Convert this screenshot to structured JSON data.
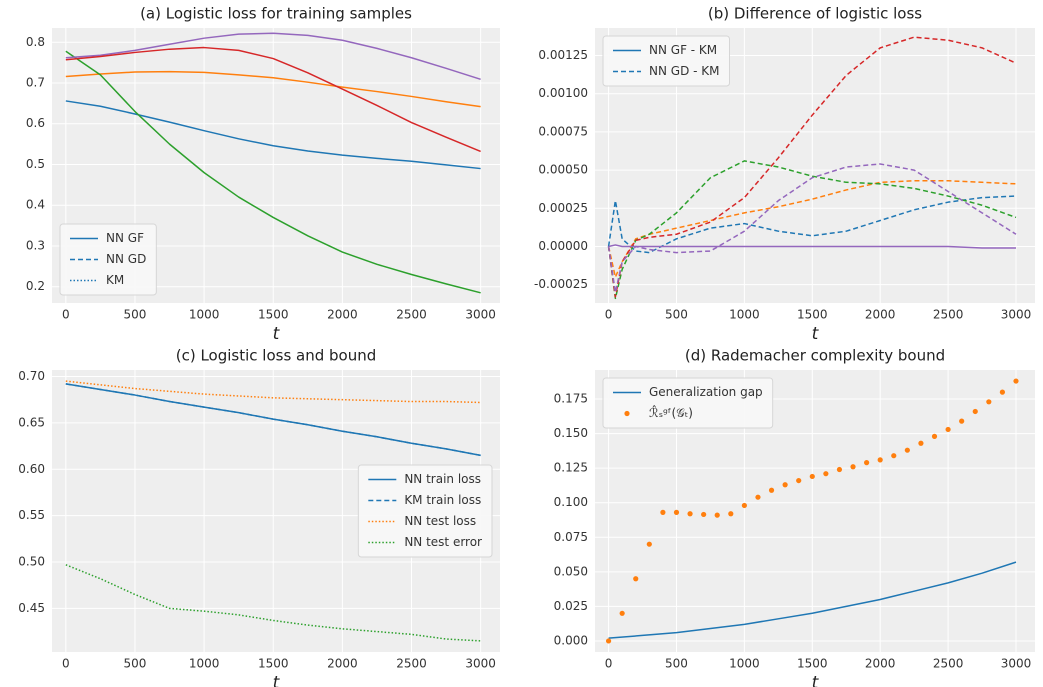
{
  "chart_data": [
    {
      "type": "line",
      "title": "(a) Logistic loss for training samples",
      "xlabel": "t",
      "x": [
        0,
        250,
        500,
        750,
        1000,
        1250,
        1500,
        1750,
        2000,
        2250,
        2500,
        2750,
        3000
      ],
      "xlim": [
        -100,
        3140
      ],
      "xticks": [
        0,
        500,
        1000,
        1500,
        2000,
        2500,
        3000
      ],
      "ylim": [
        0.16,
        0.835
      ],
      "yticks": [
        {
          "value": 0.2,
          "label": "0.2"
        },
        {
          "value": 0.3,
          "label": "0.3"
        },
        {
          "value": 0.4,
          "label": "0.4"
        },
        {
          "value": 0.5,
          "label": "0.5"
        },
        {
          "value": 0.6,
          "label": "0.6"
        },
        {
          "value": 0.7,
          "label": "0.7"
        },
        {
          "value": 0.8,
          "label": "0.8"
        }
      ],
      "grid": true,
      "series": [
        {
          "color": "#1f77b4",
          "style": "solid",
          "values": [
            0.656,
            0.643,
            0.624,
            0.604,
            0.583,
            0.563,
            0.546,
            0.533,
            0.523,
            0.515,
            0.508,
            0.499,
            0.49
          ]
        },
        {
          "color": "#ff7f0e",
          "style": "solid",
          "values": [
            0.716,
            0.722,
            0.727,
            0.728,
            0.726,
            0.72,
            0.713,
            0.702,
            0.69,
            0.679,
            0.667,
            0.654,
            0.642
          ]
        },
        {
          "color": "#2ca02c",
          "style": "solid",
          "values": [
            0.778,
            0.72,
            0.63,
            0.55,
            0.48,
            0.42,
            0.37,
            0.325,
            0.285,
            0.255,
            0.23,
            0.207,
            0.185
          ]
        },
        {
          "color": "#9467bd",
          "style": "solid",
          "values": [
            0.762,
            0.768,
            0.78,
            0.795,
            0.81,
            0.82,
            0.822,
            0.817,
            0.805,
            0.785,
            0.762,
            0.736,
            0.709
          ]
        },
        {
          "color": "#d62728",
          "style": "solid",
          "values": [
            0.757,
            0.765,
            0.775,
            0.783,
            0.787,
            0.78,
            0.76,
            0.725,
            0.685,
            0.645,
            0.603,
            0.567,
            0.532
          ]
        }
      ],
      "legend": {
        "loc": "lower left",
        "entries": [
          {
            "name": "NN GF",
            "color": "#1f77b4",
            "style": "solid"
          },
          {
            "name": "NN GD",
            "color": "#1f77b4",
            "style": "dashed"
          },
          {
            "name": "KM",
            "color": "#1f77b4",
            "style": "dotted"
          }
        ]
      }
    },
    {
      "type": "line",
      "title": "(b) Difference of logistic loss",
      "xlabel": "t",
      "x": [
        0,
        50,
        100,
        200,
        300,
        500,
        750,
        1000,
        1250,
        1500,
        1750,
        2000,
        2250,
        2500,
        2750,
        3000
      ],
      "xlim": [
        -100,
        3140
      ],
      "xticks": [
        0,
        500,
        1000,
        1500,
        2000,
        2500,
        3000
      ],
      "ylim": [
        -0.00037,
        0.00143
      ],
      "yticks": [
        {
          "value": -0.00025,
          "label": "-0.00025"
        },
        {
          "value": 0,
          "label": "0.00000"
        },
        {
          "value": 0.00025,
          "label": "0.00025"
        },
        {
          "value": 0.0005,
          "label": "0.00050"
        },
        {
          "value": 0.00075,
          "label": "0.00075"
        },
        {
          "value": 0.001,
          "label": "0.00100"
        },
        {
          "value": 0.00125,
          "label": "0.00125"
        }
      ],
      "grid": true,
      "series": [
        {
          "color": "#1f77b4",
          "style": "dashed",
          "values": [
            0,
            0.0003,
            5e-05,
            -3e-05,
            -4e-05,
            5e-05,
            0.00012,
            0.00015,
            0.0001,
            7e-05,
            0.0001,
            0.00017,
            0.00024,
            0.00029,
            0.00032,
            0.00033
          ]
        },
        {
          "color": "#ff7f0e",
          "style": "dashed",
          "values": [
            0,
            -0.0002,
            -0.0001,
            5e-05,
            8e-05,
            0.00012,
            0.00017,
            0.00022,
            0.00026,
            0.00031,
            0.00037,
            0.00042,
            0.00043,
            0.00043,
            0.00042,
            0.00041
          ]
        },
        {
          "color": "#2ca02c",
          "style": "dashed",
          "values": [
            0,
            -0.00034,
            -0.00015,
            4e-05,
            8e-05,
            0.00022,
            0.00045,
            0.00056,
            0.00052,
            0.00046,
            0.00042,
            0.00041,
            0.00038,
            0.00033,
            0.00027,
            0.00019
          ]
        },
        {
          "color": "#d62728",
          "style": "dashed",
          "values": [
            0,
            -0.00033,
            -0.0001,
            4e-05,
            6e-05,
            8e-05,
            0.00016,
            0.00032,
            0.00058,
            0.00086,
            0.00112,
            0.0013,
            0.00137,
            0.00135,
            0.0013,
            0.0012
          ]
        },
        {
          "color": "#9467bd",
          "style": "dashed",
          "values": [
            0,
            -0.0003,
            -0.0001,
            0,
            -2e-05,
            -4e-05,
            -3e-05,
            0.0001,
            0.0003,
            0.00045,
            0.00052,
            0.00054,
            0.0005,
            0.00036,
            0.00022,
            8e-05
          ]
        },
        {
          "color": "#9467bd",
          "style": "solid",
          "values": [
            0,
            1e-05,
            0,
            0,
            0,
            0,
            0,
            0,
            0,
            0,
            0,
            0,
            0,
            0,
            -1e-05,
            -1e-05
          ]
        }
      ],
      "legend": {
        "loc": "upper left",
        "entries": [
          {
            "name": "NN GF - KM",
            "color": "#1f77b4",
            "style": "solid"
          },
          {
            "name": "NN GD - KM",
            "color": "#1f77b4",
            "style": "dashed"
          }
        ]
      }
    },
    {
      "type": "line",
      "title": "(c) Logistic loss and bound",
      "xlabel": "t",
      "x": [
        0,
        250,
        500,
        750,
        1000,
        1250,
        1500,
        1750,
        2000,
        2250,
        2500,
        2750,
        3000
      ],
      "xlim": [
        -100,
        3140
      ],
      "xticks": [
        0,
        500,
        1000,
        1500,
        2000,
        2500,
        3000
      ],
      "ylim": [
        0.403,
        0.707
      ],
      "yticks": [
        0.45,
        {
          "value": 0.5,
          "label": "0.50"
        },
        0.55,
        {
          "value": 0.6,
          "label": "0.60"
        },
        0.65,
        {
          "value": 0.7,
          "label": "0.70"
        }
      ],
      "grid": true,
      "series": [
        {
          "name": "NN train loss",
          "color": "#1f77b4",
          "style": "solid",
          "values": [
            0.692,
            0.686,
            0.68,
            0.673,
            0.667,
            0.661,
            0.654,
            0.648,
            0.641,
            0.635,
            0.628,
            0.622,
            0.615
          ]
        },
        {
          "name": "KM train loss",
          "color": "#1f77b4",
          "style": "dashed",
          "values": [
            0.692,
            0.686,
            0.68,
            0.673,
            0.667,
            0.661,
            0.654,
            0.648,
            0.641,
            0.635,
            0.628,
            0.622,
            0.615
          ]
        },
        {
          "name": "NN test loss",
          "color": "#ff7f0e",
          "style": "dotted",
          "values": [
            0.695,
            0.691,
            0.687,
            0.684,
            0.681,
            0.679,
            0.677,
            0.676,
            0.675,
            0.674,
            0.673,
            0.673,
            0.672
          ]
        },
        {
          "name": "NN test error",
          "color": "#2ca02c",
          "style": "dotted",
          "values": [
            0.497,
            0.482,
            0.465,
            0.45,
            0.447,
            0.443,
            0.437,
            0.432,
            0.428,
            0.425,
            0.422,
            0.417,
            0.415
          ]
        }
      ],
      "legend": {
        "loc": "center right"
      }
    },
    {
      "type": "line",
      "title": "(d) Rademacher complexity bound",
      "xlabel": "t",
      "x": [
        0,
        250,
        500,
        750,
        1000,
        1250,
        1500,
        1750,
        2000,
        2250,
        2500,
        2750,
        3000
      ],
      "xlim": [
        -100,
        3140
      ],
      "xticks": [
        0,
        500,
        1000,
        1500,
        2000,
        2500,
        3000
      ],
      "ylim": [
        -0.008,
        0.196
      ],
      "yticks": [
        {
          "value": 0,
          "label": "0.000"
        },
        {
          "value": 0.025,
          "label": "0.025"
        },
        {
          "value": 0.05,
          "label": "0.050"
        },
        {
          "value": 0.075,
          "label": "0.075"
        },
        {
          "value": 0.1,
          "label": "0.100"
        },
        {
          "value": 0.125,
          "label": "0.125"
        },
        {
          "value": 0.15,
          "label": "0.150"
        },
        {
          "value": 0.175,
          "label": "0.175"
        }
      ],
      "grid": true,
      "series": [
        {
          "name": "Generalization gap",
          "color": "#1f77b4",
          "style": "solid",
          "values": [
            0.002,
            0.004,
            0.006,
            0.009,
            0.012,
            0.016,
            0.02,
            0.025,
            0.03,
            0.036,
            0.042,
            0.049,
            0.057
          ]
        },
        {
          "name": "ℛ̂ₛᵍᶠ(𝒢ₜ)",
          "color": "#ff7f0e",
          "style": "dots",
          "x": [
            0,
            100,
            200,
            300,
            400,
            500,
            600,
            700,
            800,
            900,
            1000,
            1100,
            1200,
            1300,
            1400,
            1500,
            1600,
            1700,
            1800,
            1900,
            2000,
            2100,
            2200,
            2300,
            2400,
            2500,
            2600,
            2700,
            2800,
            2900,
            3000
          ],
          "values": [
            0,
            0.02,
            0.045,
            0.07,
            0.093,
            0.093,
            0.092,
            0.0915,
            0.091,
            0.092,
            0.098,
            0.104,
            0.109,
            0.113,
            0.116,
            0.119,
            0.121,
            0.124,
            0.126,
            0.129,
            0.131,
            0.134,
            0.138,
            0.143,
            0.148,
            0.153,
            0.159,
            0.166,
            0.173,
            0.18,
            0.188
          ]
        }
      ],
      "legend": {
        "loc": "upper left"
      }
    }
  ]
}
